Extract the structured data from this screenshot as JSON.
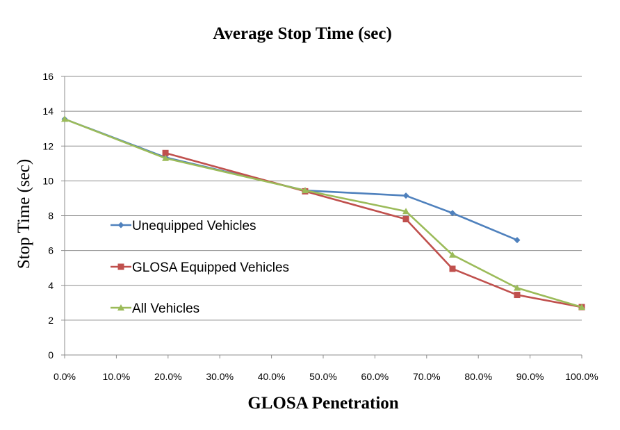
{
  "chart_data": {
    "type": "line",
    "title": "Average Stop Time (sec)",
    "xlabel": "GLOSA Penetration",
    "ylabel": "Stop Time  (sec)",
    "xlim": [
      0,
      1
    ],
    "ylim": [
      0,
      16
    ],
    "x_tick_labels": [
      "0.0%",
      "10.0%",
      "20.0%",
      "30.0%",
      "40.0%",
      "50.0%",
      "60.0%",
      "70.0%",
      "80.0%",
      "90.0%",
      "100.0%"
    ],
    "y_tick_labels": [
      "0",
      "2",
      "4",
      "6",
      "8",
      "10",
      "12",
      "14",
      "16"
    ],
    "grid": "horizontal",
    "legend_placement": "left",
    "series": [
      {
        "name": "Unequipped Vehicles",
        "color": "#4f81bd",
        "marker": "diamond",
        "x": [
          0.0,
          0.195,
          0.465,
          0.66,
          0.75,
          0.875
        ],
        "y": [
          13.55,
          11.35,
          9.45,
          9.15,
          8.15,
          6.6
        ]
      },
      {
        "name": "GLOSA Equipped Vehicles",
        "color": "#c0504d",
        "marker": "square",
        "x": [
          0.195,
          0.465,
          0.66,
          0.75,
          0.875,
          1.0
        ],
        "y": [
          11.6,
          9.4,
          7.8,
          4.95,
          3.45,
          2.75
        ]
      },
      {
        "name": "All Vehicles",
        "color": "#9bbb59",
        "marker": "triangle",
        "x": [
          0.0,
          0.195,
          0.465,
          0.66,
          0.75,
          0.875,
          1.0
        ],
        "y": [
          13.55,
          11.3,
          9.45,
          8.25,
          5.75,
          3.85,
          2.75
        ]
      }
    ]
  }
}
